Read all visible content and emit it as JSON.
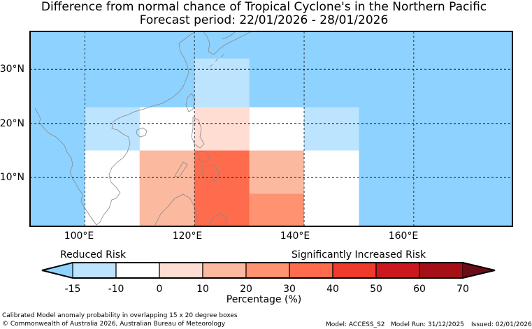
{
  "title": {
    "line1": "Difference from normal chance of Tropical Cyclone's in the Northern Pacific",
    "line2": "Forecast period: 22/01/2026 - 28/01/2026"
  },
  "map": {
    "lat_labels": [
      "30°N",
      "20°N",
      "10°N"
    ],
    "lon_labels": [
      "100°E",
      "120°E",
      "140°E",
      "160°E"
    ],
    "extent": {
      "lon_min": 90,
      "lon_max": 178,
      "lat_min": 1,
      "lat_max": 37
    },
    "gridlines": {
      "lons": [
        100,
        120,
        140,
        160
      ],
      "lats": [
        10,
        20,
        30
      ]
    },
    "colors": {
      "ocean": "#8ed2ff",
      "coast": "#8a8a8a",
      "grid": "#222222"
    },
    "boxes": [
      {
        "name": "box-north-central",
        "lon": [
          120,
          130
        ],
        "lat": [
          23,
          32
        ],
        "color": "#bde4ff"
      },
      {
        "name": "box-west-upper",
        "lon": [
          100,
          110
        ],
        "lat": [
          15,
          23
        ],
        "color": "#bde4ff"
      },
      {
        "name": "box-south-china-sea-north",
        "lon": [
          110,
          120
        ],
        "lat": [
          15,
          23
        ],
        "color": "#ffffff"
      },
      {
        "name": "box-philippine-sea-north",
        "lon": [
          120,
          130
        ],
        "lat": [
          15,
          23
        ],
        "color": "#ffddd2"
      },
      {
        "name": "box-central-north",
        "lon": [
          130,
          140
        ],
        "lat": [
          15,
          23
        ],
        "color": "#ffffff"
      },
      {
        "name": "box-east-upper",
        "lon": [
          140,
          150
        ],
        "lat": [
          15,
          23
        ],
        "color": "#bde4ff"
      },
      {
        "name": "box-west-lower",
        "lon": [
          100,
          110
        ],
        "lat": [
          1,
          15
        ],
        "color": "#ffffff"
      },
      {
        "name": "box-south-china-sea-south",
        "lon": [
          110,
          120
        ],
        "lat": [
          1,
          15
        ],
        "color": "#fbb9a0"
      },
      {
        "name": "box-philippines",
        "lon": [
          120,
          130
        ],
        "lat": [
          1,
          15
        ],
        "color": "#fe6b4d"
      },
      {
        "name": "box-central-south-upper",
        "lon": [
          130,
          140
        ],
        "lat": [
          7,
          15
        ],
        "color": "#fbb9a0"
      },
      {
        "name": "box-central-south-lower",
        "lon": [
          130,
          140
        ],
        "lat": [
          1,
          7
        ],
        "color": "#fe9271"
      },
      {
        "name": "box-east-lower",
        "lon": [
          140,
          150
        ],
        "lat": [
          1,
          15
        ],
        "color": "#ffffff"
      }
    ]
  },
  "colorbar": {
    "left_label": "Reduced Risk",
    "right_label": "Significantly Increased Risk",
    "ticks": [
      "-15",
      "-10",
      "0",
      "10",
      "20",
      "30",
      "40",
      "50",
      "60",
      "70"
    ],
    "under_color": "#8ed2ff",
    "over_color": "#6b0d17",
    "segment_colors": [
      "#bde4ff",
      "#ffffff",
      "#ffddd2",
      "#fbb9a0",
      "#fe9271",
      "#fe6b4d",
      "#ef3b2c",
      "#cb181d",
      "#a50f15"
    ],
    "units": "Percentage (%)"
  },
  "footer": {
    "caption": "Calibrated Model anomaly probability in overlapping 15 x 20 degree boxes",
    "copyright": "© Commonwealth of Australia 2026, Australian Bureau of Meteorology",
    "model": "Model: ACCESS_S2",
    "model_run": "Model Run: 31/12/2025",
    "issued": "Issued: 02/01/2026"
  }
}
